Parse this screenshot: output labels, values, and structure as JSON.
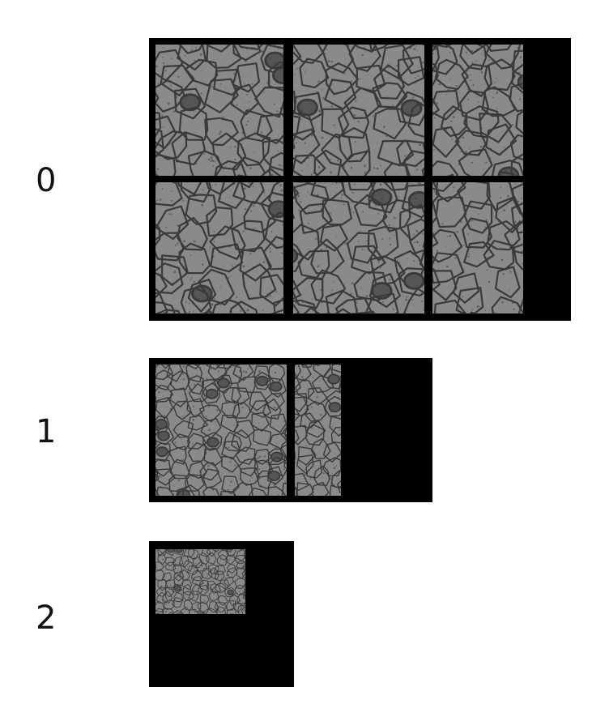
{
  "levels": [
    {
      "label": "0",
      "grid": {
        "cols": 3,
        "rows": 2
      }
    },
    {
      "label": "1",
      "grid": {
        "cols": 2,
        "rows": 1
      }
    },
    {
      "label": "2",
      "grid": {
        "cols": 1,
        "rows": 1
      }
    }
  ],
  "colors": {
    "background": "#ffffff",
    "frame": "#000000",
    "tissue": "#8a8a8a",
    "membrane": "#3a3a3a",
    "organelle": "#555555"
  }
}
